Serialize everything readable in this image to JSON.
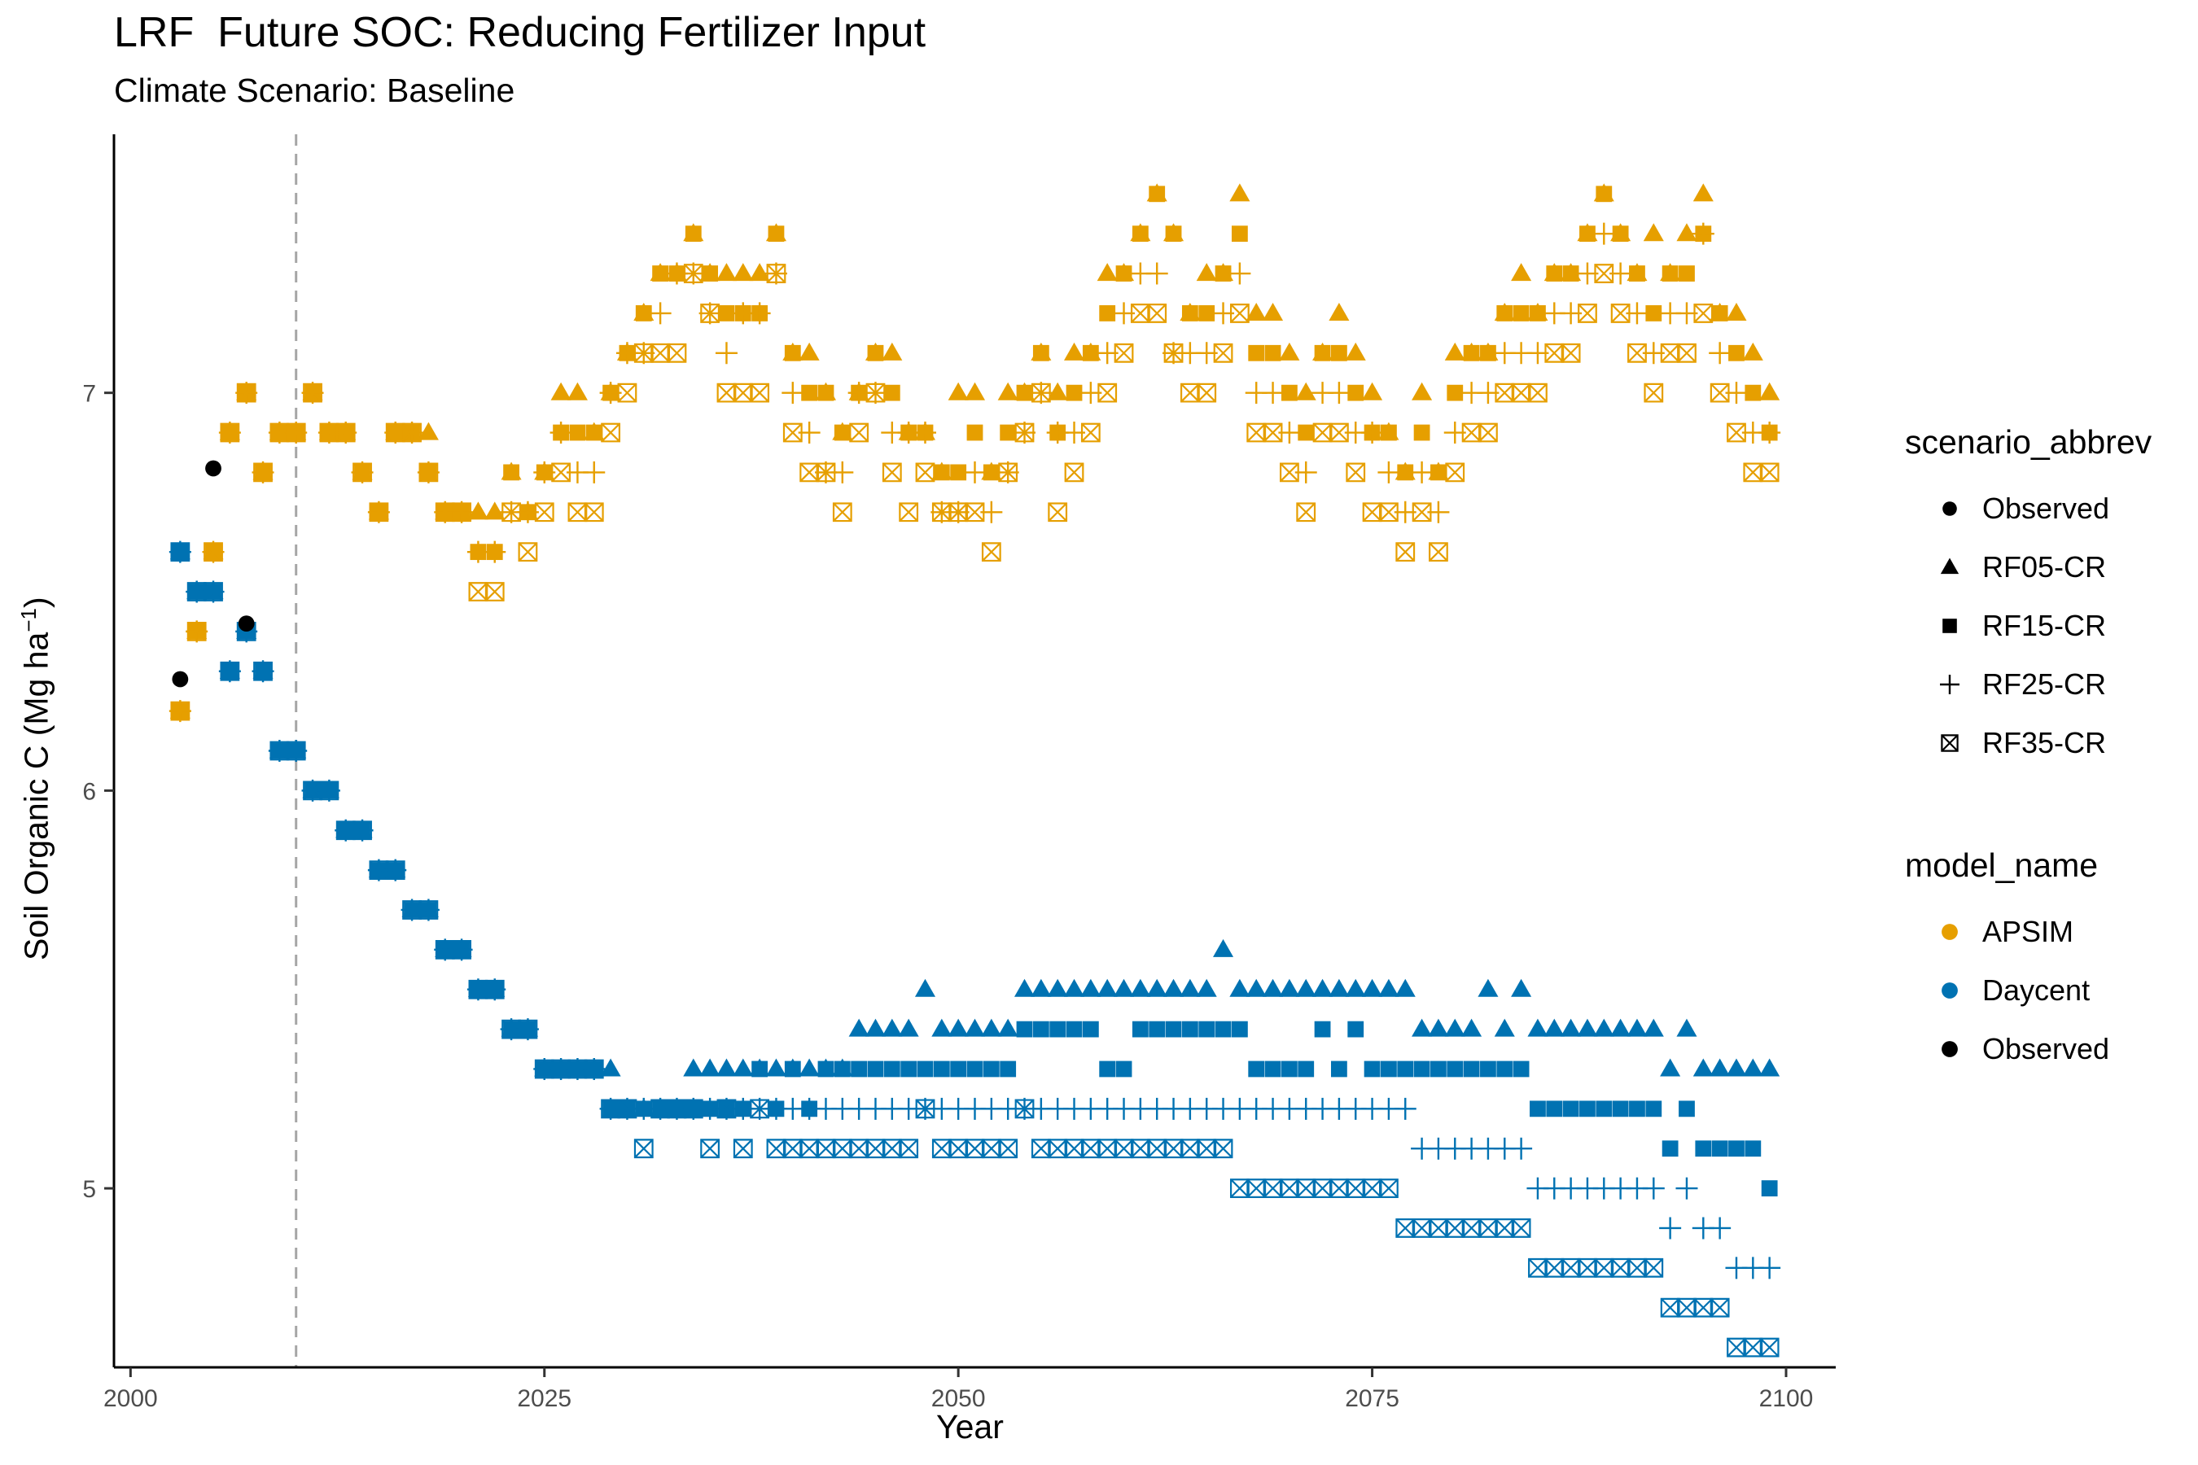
{
  "chart_data": {
    "type": "scatter",
    "title": "LRF  Future SOC: Reducing Fertilizer Input",
    "subtitle": "Climate Scenario: Baseline",
    "xlabel": "Year",
    "ylabel": "Soil Organic C (Mg ha",
    "ylabel_sup": "−1",
    "ylabel_end": ")",
    "xlim": [
      1999,
      2103
    ],
    "ylim": [
      4.55,
      7.65
    ],
    "x_ticks": [
      2000,
      2025,
      2050,
      2075,
      2100
    ],
    "y_ticks": [
      5,
      6,
      7
    ],
    "reference_line": {
      "x": 2010,
      "style": "dashed",
      "color": "#a6a6a6"
    },
    "legend": {
      "shape_title": "scenario_abbrev",
      "shape_items": [
        {
          "label": "Observed",
          "shape": "circle"
        },
        {
          "label": "RF05-CR",
          "shape": "triangle"
        },
        {
          "label": "RF15-CR",
          "shape": "square"
        },
        {
          "label": "RF25-CR",
          "shape": "plus"
        },
        {
          "label": "RF35-CR",
          "shape": "boxed-x"
        }
      ],
      "color_title": "model_name",
      "color_items": [
        {
          "label": "APSIM",
          "color": "#E69F00"
        },
        {
          "label": "Daycent",
          "color": "#0072B2"
        },
        {
          "label": "Observed",
          "color": "#000000"
        }
      ]
    },
    "colors": {
      "APSIM": "#E69F00",
      "Daycent": "#0072B2",
      "Observed": "#000000"
    },
    "observed": {
      "x": [
        2003,
        2005,
        2007
      ],
      "y": [
        6.28,
        6.81,
        6.42
      ]
    },
    "spinup": {
      "x": [
        2003,
        2004,
        2005,
        2006,
        2007,
        2008,
        2009,
        2010
      ],
      "APSIM": [
        6.2,
        6.4,
        6.6,
        6.9,
        7.0,
        6.8,
        6.9,
        6.9
      ],
      "Daycent": [
        6.6,
        6.5,
        6.5,
        6.3,
        6.4,
        6.3,
        6.1,
        6.1
      ]
    },
    "x_future": [
      2011,
      2012,
      2013,
      2014,
      2015,
      2016,
      2017,
      2018,
      2019,
      2020,
      2021,
      2022,
      2023,
      2024,
      2025,
      2026,
      2027,
      2028,
      2029,
      2030,
      2031,
      2032,
      2033,
      2034,
      2035,
      2036,
      2037,
      2038,
      2039,
      2040,
      2041,
      2042,
      2043,
      2044,
      2045,
      2046,
      2047,
      2048,
      2049,
      2050,
      2051,
      2052,
      2053,
      2054,
      2055,
      2056,
      2057,
      2058,
      2059,
      2060,
      2061,
      2062,
      2063,
      2064,
      2065,
      2066,
      2067,
      2068,
      2069,
      2070,
      2071,
      2072,
      2073,
      2074,
      2075,
      2076,
      2077,
      2078,
      2079,
      2080,
      2081,
      2082,
      2083,
      2084,
      2085,
      2086,
      2087,
      2088,
      2089,
      2090,
      2091,
      2092,
      2093,
      2094,
      2095,
      2096,
      2097,
      2098,
      2099
    ],
    "apsim_base": [
      7.0,
      6.9,
      6.9,
      6.8,
      6.7,
      6.9,
      6.9,
      6.8,
      6.7,
      6.7,
      6.6,
      6.6,
      6.8,
      6.7,
      6.8,
      6.9,
      6.9,
      6.9,
      7.0,
      7.1,
      7.2,
      7.3,
      7.3,
      7.4,
      7.3,
      7.2,
      7.2,
      7.2,
      7.4,
      7.1,
      7.0,
      7.0,
      6.9,
      7.0,
      7.1,
      7.0,
      6.9,
      6.9,
      6.8,
      6.8,
      6.9,
      6.8,
      6.9,
      7.0,
      7.1,
      6.9,
      7.0,
      7.1,
      7.2,
      7.3,
      7.4,
      7.5,
      7.4,
      7.2,
      7.2,
      7.3,
      7.4,
      7.1,
      7.1,
      7.0,
      6.9,
      7.1,
      7.1,
      7.0,
      6.9,
      6.9,
      6.8,
      6.9,
      6.8,
      7.0,
      7.1,
      7.1,
      7.2,
      7.2,
      7.2,
      7.3,
      7.3,
      7.4,
      7.5,
      7.4,
      7.3,
      7.2,
      7.3,
      7.3,
      7.4,
      7.2,
      7.1,
      7.0,
      6.9
    ],
    "apsim_delta": {
      "RF05-CR": [
        0,
        0,
        0,
        0,
        0,
        0,
        0,
        0.1,
        0,
        0,
        0.1,
        0.1,
        0,
        0,
        0,
        0.1,
        0.1,
        0,
        0,
        0,
        0,
        0,
        0,
        0,
        0,
        0.1,
        0.1,
        0.1,
        0,
        0,
        0.1,
        0,
        0,
        0,
        0,
        0.1,
        0,
        0,
        0,
        0.2,
        0.1,
        0,
        0.1,
        0,
        0,
        0.1,
        0.1,
        0,
        0.1,
        0,
        0,
        0,
        0,
        0,
        0.1,
        0,
        0.1,
        0.1,
        0.1,
        0.1,
        0.1,
        0,
        0.1,
        0.1,
        0.1,
        0,
        0,
        0.1,
        0,
        0.1,
        0,
        0,
        0,
        0.1,
        0,
        0,
        0,
        0,
        0,
        0,
        0,
        0.2,
        0,
        0.1,
        0.1,
        0,
        0.1,
        0.1,
        0.1
      ],
      "RF15-CR": [
        0,
        0,
        0,
        0,
        0,
        0,
        0,
        0,
        0,
        0,
        0,
        0,
        0,
        0,
        0,
        0,
        0,
        0,
        0,
        0,
        0,
        0,
        0,
        0,
        0,
        0,
        0,
        0,
        0,
        0,
        0,
        0,
        0,
        0,
        0,
        0,
        0,
        0,
        0,
        0,
        0,
        0,
        0,
        0,
        0,
        0,
        0,
        0,
        0,
        0,
        0,
        0,
        0,
        0,
        0,
        0,
        0,
        0,
        0,
        0,
        0,
        0,
        0,
        0,
        0,
        0,
        0,
        0,
        0,
        0,
        0,
        0,
        0,
        0,
        0,
        0,
        0,
        0,
        0,
        0,
        0,
        0,
        0,
        0,
        0,
        0,
        0,
        0,
        0
      ],
      "RF25-CR": [
        0,
        0,
        0,
        0,
        0,
        0,
        0,
        0,
        0,
        0,
        0,
        0,
        -0.1,
        0,
        0,
        0,
        -0.1,
        -0.1,
        0,
        0,
        -0.1,
        -0.1,
        0,
        -0.1,
        -0.1,
        -0.1,
        0,
        0,
        -0.1,
        -0.1,
        -0.1,
        -0.2,
        -0.1,
        0,
        -0.1,
        -0.1,
        0,
        0,
        -0.1,
        -0.1,
        -0.1,
        -0.1,
        -0.1,
        -0.1,
        -0.1,
        0,
        -0.1,
        -0.1,
        -0.1,
        -0.1,
        -0.1,
        -0.2,
        -0.3,
        -0.1,
        -0.1,
        -0.1,
        -0.1,
        -0.1,
        -0.1,
        -0.1,
        -0.1,
        -0.1,
        -0.1,
        -0.1,
        0,
        -0.1,
        -0.1,
        -0.1,
        -0.1,
        -0.1,
        -0.1,
        -0.1,
        -0.1,
        -0.1,
        -0.1,
        -0.1,
        -0.1,
        -0.1,
        -0.1,
        -0.1,
        -0.1,
        -0.1,
        -0.1,
        -0.1,
        0,
        -0.1,
        -0.1,
        -0.1,
        0
      ],
      "RF35-CR": [
        0,
        0,
        0,
        0,
        0,
        0,
        0,
        0,
        0,
        0,
        -0.1,
        -0.1,
        -0.1,
        -0.1,
        -0.1,
        -0.1,
        -0.2,
        -0.2,
        -0.1,
        -0.1,
        -0.1,
        -0.2,
        -0.2,
        -0.1,
        -0.1,
        -0.2,
        -0.2,
        -0.2,
        -0.1,
        -0.2,
        -0.2,
        -0.2,
        -0.2,
        -0.1,
        -0.1,
        -0.2,
        -0.2,
        -0.1,
        -0.1,
        -0.1,
        -0.2,
        -0.2,
        -0.1,
        -0.1,
        -0.1,
        -0.2,
        -0.2,
        -0.2,
        -0.2,
        -0.2,
        -0.2,
        -0.3,
        -0.3,
        -0.2,
        -0.2,
        -0.2,
        -0.2,
        -0.2,
        -0.2,
        -0.2,
        -0.2,
        -0.2,
        -0.2,
        -0.2,
        -0.2,
        -0.2,
        -0.2,
        -0.2,
        -0.2,
        -0.2,
        -0.2,
        -0.2,
        -0.2,
        -0.2,
        -0.2,
        -0.2,
        -0.2,
        -0.2,
        -0.2,
        -0.2,
        -0.2,
        -0.2,
        -0.2,
        -0.2,
        -0.2,
        -0.2,
        -0.2,
        -0.2,
        -0.1
      ]
    },
    "daycent": {
      "RF05-CR": [
        6.0,
        6.0,
        5.9,
        5.9,
        5.8,
        5.8,
        5.7,
        5.7,
        5.6,
        5.6,
        5.5,
        5.5,
        5.4,
        5.4,
        5.3,
        5.3,
        5.3,
        5.3,
        5.3,
        5.2,
        5.2,
        5.2,
        5.2,
        5.3,
        5.3,
        5.3,
        5.3,
        5.3,
        5.3,
        5.3,
        5.3,
        5.3,
        5.3,
        5.4,
        5.4,
        5.4,
        5.4,
        5.5,
        5.4,
        5.4,
        5.4,
        5.4,
        5.4,
        5.5,
        5.5,
        5.5,
        5.5,
        5.5,
        5.5,
        5.5,
        5.5,
        5.5,
        5.5,
        5.5,
        5.5,
        5.6,
        5.5,
        5.5,
        5.5,
        5.5,
        5.5,
        5.5,
        5.5,
        5.5,
        5.5,
        5.5,
        5.5,
        5.4,
        5.4,
        5.4,
        5.4,
        5.5,
        5.4,
        5.5,
        5.4,
        5.4,
        5.4,
        5.4,
        5.4,
        5.4,
        5.4,
        5.4,
        5.3,
        5.4,
        5.3,
        5.3,
        5.3,
        5.3,
        5.3
      ],
      "RF15-CR": [
        6.0,
        6.0,
        5.9,
        5.9,
        5.8,
        5.8,
        5.7,
        5.7,
        5.6,
        5.6,
        5.5,
        5.5,
        5.4,
        5.4,
        5.3,
        5.3,
        5.3,
        5.3,
        5.2,
        5.2,
        5.2,
        5.2,
        5.2,
        5.2,
        5.2,
        5.2,
        5.2,
        5.3,
        5.2,
        5.3,
        5.2,
        5.3,
        5.3,
        5.3,
        5.3,
        5.3,
        5.3,
        5.3,
        5.3,
        5.3,
        5.3,
        5.3,
        5.3,
        5.4,
        5.4,
        5.4,
        5.4,
        5.4,
        5.3,
        5.3,
        5.4,
        5.4,
        5.4,
        5.4,
        5.4,
        5.4,
        5.4,
        5.3,
        5.3,
        5.3,
        5.3,
        5.4,
        5.3,
        5.4,
        5.3,
        5.3,
        5.3,
        5.3,
        5.3,
        5.3,
        5.3,
        5.3,
        5.3,
        5.3,
        5.2,
        5.2,
        5.2,
        5.2,
        5.2,
        5.2,
        5.2,
        5.2,
        5.1,
        5.2,
        5.1,
        5.1,
        5.1,
        5.1,
        5.0
      ],
      "RF25-CR": [
        6.0,
        6.0,
        5.9,
        5.9,
        5.8,
        5.8,
        5.7,
        5.7,
        5.6,
        5.6,
        5.5,
        5.5,
        5.4,
        5.4,
        5.3,
        5.3,
        5.3,
        5.3,
        5.2,
        5.2,
        5.2,
        5.2,
        5.2,
        5.2,
        5.2,
        5.2,
        5.2,
        5.2,
        5.2,
        5.2,
        5.2,
        5.2,
        5.2,
        5.2,
        5.2,
        5.2,
        5.2,
        5.2,
        5.2,
        5.2,
        5.2,
        5.2,
        5.2,
        5.2,
        5.2,
        5.2,
        5.2,
        5.2,
        5.2,
        5.2,
        5.2,
        5.2,
        5.2,
        5.2,
        5.2,
        5.2,
        5.2,
        5.2,
        5.2,
        5.2,
        5.2,
        5.2,
        5.2,
        5.2,
        5.2,
        5.2,
        5.2,
        5.1,
        5.1,
        5.1,
        5.1,
        5.1,
        5.1,
        5.1,
        5.0,
        5.0,
        5.0,
        5.0,
        5.0,
        5.0,
        5.0,
        5.0,
        4.9,
        5.0,
        4.9,
        4.9,
        4.8,
        4.8,
        4.8
      ],
      "RF35-CR": [
        6.0,
        6.0,
        5.9,
        5.9,
        5.8,
        5.8,
        5.7,
        5.7,
        5.6,
        5.6,
        5.5,
        5.5,
        5.4,
        5.4,
        5.3,
        5.3,
        5.3,
        5.3,
        5.2,
        5.2,
        5.1,
        5.2,
        5.2,
        5.2,
        5.1,
        5.2,
        5.1,
        5.2,
        5.1,
        5.1,
        5.1,
        5.1,
        5.1,
        5.1,
        5.1,
        5.1,
        5.1,
        5.2,
        5.1,
        5.1,
        5.1,
        5.1,
        5.1,
        5.2,
        5.1,
        5.1,
        5.1,
        5.1,
        5.1,
        5.1,
        5.1,
        5.1,
        5.1,
        5.1,
        5.1,
        5.1,
        5.0,
        5.0,
        5.0,
        5.0,
        5.0,
        5.0,
        5.0,
        5.0,
        5.0,
        5.0,
        4.9,
        4.9,
        4.9,
        4.9,
        4.9,
        4.9,
        4.9,
        4.9,
        4.8,
        4.8,
        4.8,
        4.8,
        4.8,
        4.8,
        4.8,
        4.8,
        4.7,
        4.7,
        4.7,
        4.7,
        4.6,
        4.6,
        4.6
      ]
    }
  }
}
